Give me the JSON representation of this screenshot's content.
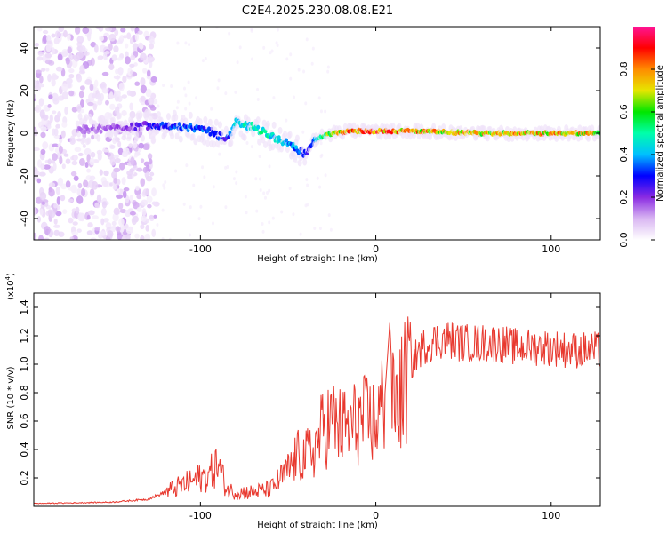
{
  "chart_data": [
    {
      "type": "heatmap",
      "title": "C2E4.2025.230.08.08.E21",
      "xlabel": "Height of straight line (km)",
      "ylabel": "Frequency (Hz)",
      "xlim": [
        -195,
        128
      ],
      "ylim": [
        -50,
        50
      ],
      "xticks": [
        -100,
        0,
        100
      ],
      "yticks": [
        -40,
        -20,
        0,
        20,
        40
      ],
      "colorbar": {
        "label": "Normalized spectral amplitude",
        "range": [
          0,
          1
        ],
        "ticks": [
          "0.0",
          "0.2",
          "0.4",
          "0.6",
          "0.8"
        ],
        "colors": [
          "#ffffff",
          "#d9b6f2",
          "#8a2be2",
          "#0000ff",
          "#00bfff",
          "#00ffaa",
          "#00e600",
          "#e6e600",
          "#ff8c00",
          "#ff0000",
          "#ff1493"
        ]
      },
      "track": {
        "x": [
          -160,
          -140,
          -125,
          -110,
          -95,
          -85,
          -80,
          -70,
          -60,
          -50,
          -40,
          -35,
          -25,
          -15,
          -5,
          0,
          20,
          60,
          100,
          128
        ],
        "y": [
          2,
          3,
          4,
          3,
          1,
          -3,
          5,
          3,
          -1,
          -5,
          -10,
          -3,
          0,
          1,
          1,
          1,
          1,
          0,
          0,
          0
        ],
        "amplitude": [
          0.15,
          0.2,
          0.3,
          0.35,
          0.35,
          0.3,
          0.5,
          0.5,
          0.5,
          0.45,
          0.3,
          0.4,
          0.7,
          0.85,
          0.9,
          0.9,
          0.8,
          0.75,
          0.8,
          0.75
        ]
      },
      "noise_region": {
        "x": [
          -195,
          -125
        ],
        "y": [
          -50,
          50
        ]
      }
    },
    {
      "type": "line",
      "title": "",
      "xlabel": "Height of straight line (km)",
      "ylabel": "SNR (10 * v/v)",
      "y_multiplier": "(x10^4)",
      "xlim": [
        -195,
        128
      ],
      "ylim": [
        0,
        1.5
      ],
      "xticks": [
        -100,
        0,
        100
      ],
      "yticks": [
        0.2,
        0.4,
        0.6,
        0.8,
        1.0,
        1.2,
        1.4
      ],
      "series": [
        {
          "color": "#e8392f",
          "x": [
            -195,
            -170,
            -150,
            -130,
            -120,
            -110,
            -100,
            -95,
            -90,
            -85,
            -80,
            -70,
            -60,
            -50,
            -45,
            -40,
            -35,
            -30,
            -25,
            -20,
            -15,
            -10,
            -5,
            0,
            5,
            8,
            10,
            15,
            20,
            25,
            30,
            40,
            50,
            60,
            70,
            80,
            90,
            100,
            110,
            120,
            128
          ],
          "y": [
            0.02,
            0.025,
            0.03,
            0.05,
            0.1,
            0.15,
            0.2,
            0.22,
            0.3,
            0.12,
            0.1,
            0.1,
            0.12,
            0.25,
            0.35,
            0.35,
            0.4,
            0.55,
            0.6,
            0.55,
            0.55,
            0.6,
            0.6,
            0.6,
            0.75,
            1.3,
            0.7,
            0.8,
            1.0,
            1.1,
            1.15,
            1.18,
            1.15,
            1.15,
            1.15,
            1.12,
            1.12,
            1.12,
            1.1,
            1.1,
            1.1
          ]
        }
      ]
    }
  ]
}
